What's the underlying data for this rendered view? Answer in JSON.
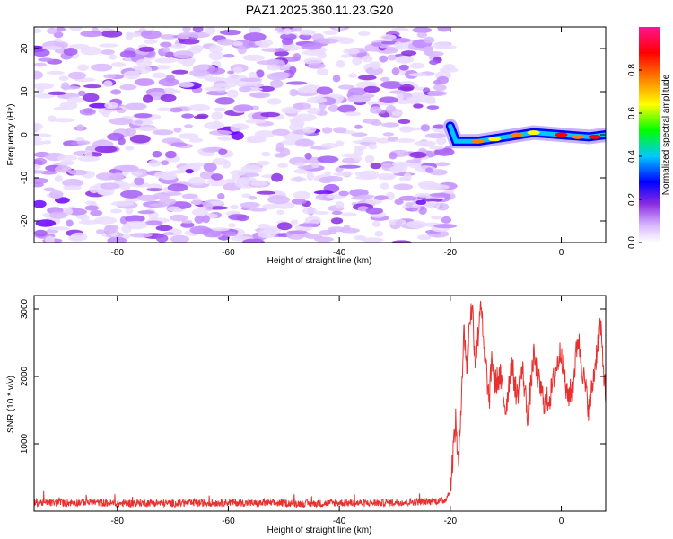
{
  "title": "PAZ1.2025.360.11.23.G20",
  "chart_data": [
    {
      "type": "heatmap",
      "xlabel": "Height of straight line (km)",
      "ylabel": "Frequency (Hz)",
      "xlim": [
        -95,
        8
      ],
      "ylim": [
        -25,
        25
      ],
      "xticks": [
        -80,
        -60,
        -40,
        -20,
        0
      ],
      "yticks": [
        -20,
        -10,
        0,
        10,
        20
      ],
      "noise_region_x": [
        -95,
        -20
      ],
      "signal_track": [
        {
          "x": -20,
          "y": 2
        },
        {
          "x": -19,
          "y": -1.5
        },
        {
          "x": -15,
          "y": -1.5
        },
        {
          "x": -10,
          "y": -0.5
        },
        {
          "x": -5,
          "y": 0.5
        },
        {
          "x": 0,
          "y": 0
        },
        {
          "x": 5,
          "y": -0.5
        },
        {
          "x": 8,
          "y": 0
        }
      ],
      "colorbar": {
        "label": "Normalized spectral amplitude",
        "range": [
          0.0,
          1.0
        ],
        "ticks": [
          "0.0",
          "0.2",
          "0.4",
          "0.6",
          "0.8"
        ],
        "colormap": [
          "#ffffff",
          "#d8b8ff",
          "#8a2be2",
          "#0000ff",
          "#00c8ff",
          "#00ff00",
          "#ffff00",
          "#ff8000",
          "#ff0000",
          "#ff1493"
        ]
      }
    },
    {
      "type": "line",
      "xlabel": "Height of straight line (km)",
      "ylabel": "SNR (10 * v/v)",
      "xlim": [
        -95,
        8
      ],
      "ylim": [
        0,
        3200
      ],
      "xticks": [
        -80,
        -60,
        -40,
        -20,
        0
      ],
      "yticks": [
        1000,
        2000,
        3000
      ],
      "color": "#e8312f",
      "x": [
        -95,
        -90,
        -85,
        -80,
        -75,
        -70,
        -65,
        -60,
        -55,
        -50,
        -45,
        -40,
        -35,
        -30,
        -25,
        -21,
        -20,
        -19.5,
        -19,
        -18.5,
        -18,
        -17.5,
        -17,
        -16.5,
        -16,
        -15.5,
        -15,
        -14.5,
        -14,
        -13.5,
        -13,
        -12.5,
        -12,
        -11,
        -10,
        -9,
        -8,
        -7,
        -6,
        -5,
        -4,
        -3,
        -2,
        -1,
        0,
        1,
        2,
        3,
        4,
        5,
        6,
        7,
        8
      ],
      "y": [
        130,
        120,
        135,
        110,
        125,
        115,
        120,
        130,
        115,
        120,
        110,
        125,
        120,
        130,
        140,
        160,
        300,
        900,
        1350,
        600,
        1800,
        2700,
        2100,
        2900,
        3000,
        2200,
        2600,
        3200,
        2400,
        2100,
        1600,
        2300,
        1900,
        2000,
        1500,
        2200,
        1700,
        2100,
        1400,
        2300,
        1900,
        1600,
        1700,
        2100,
        2400,
        1700,
        1800,
        2600,
        2000,
        1500,
        2100,
        2800,
        1700
      ]
    }
  ]
}
